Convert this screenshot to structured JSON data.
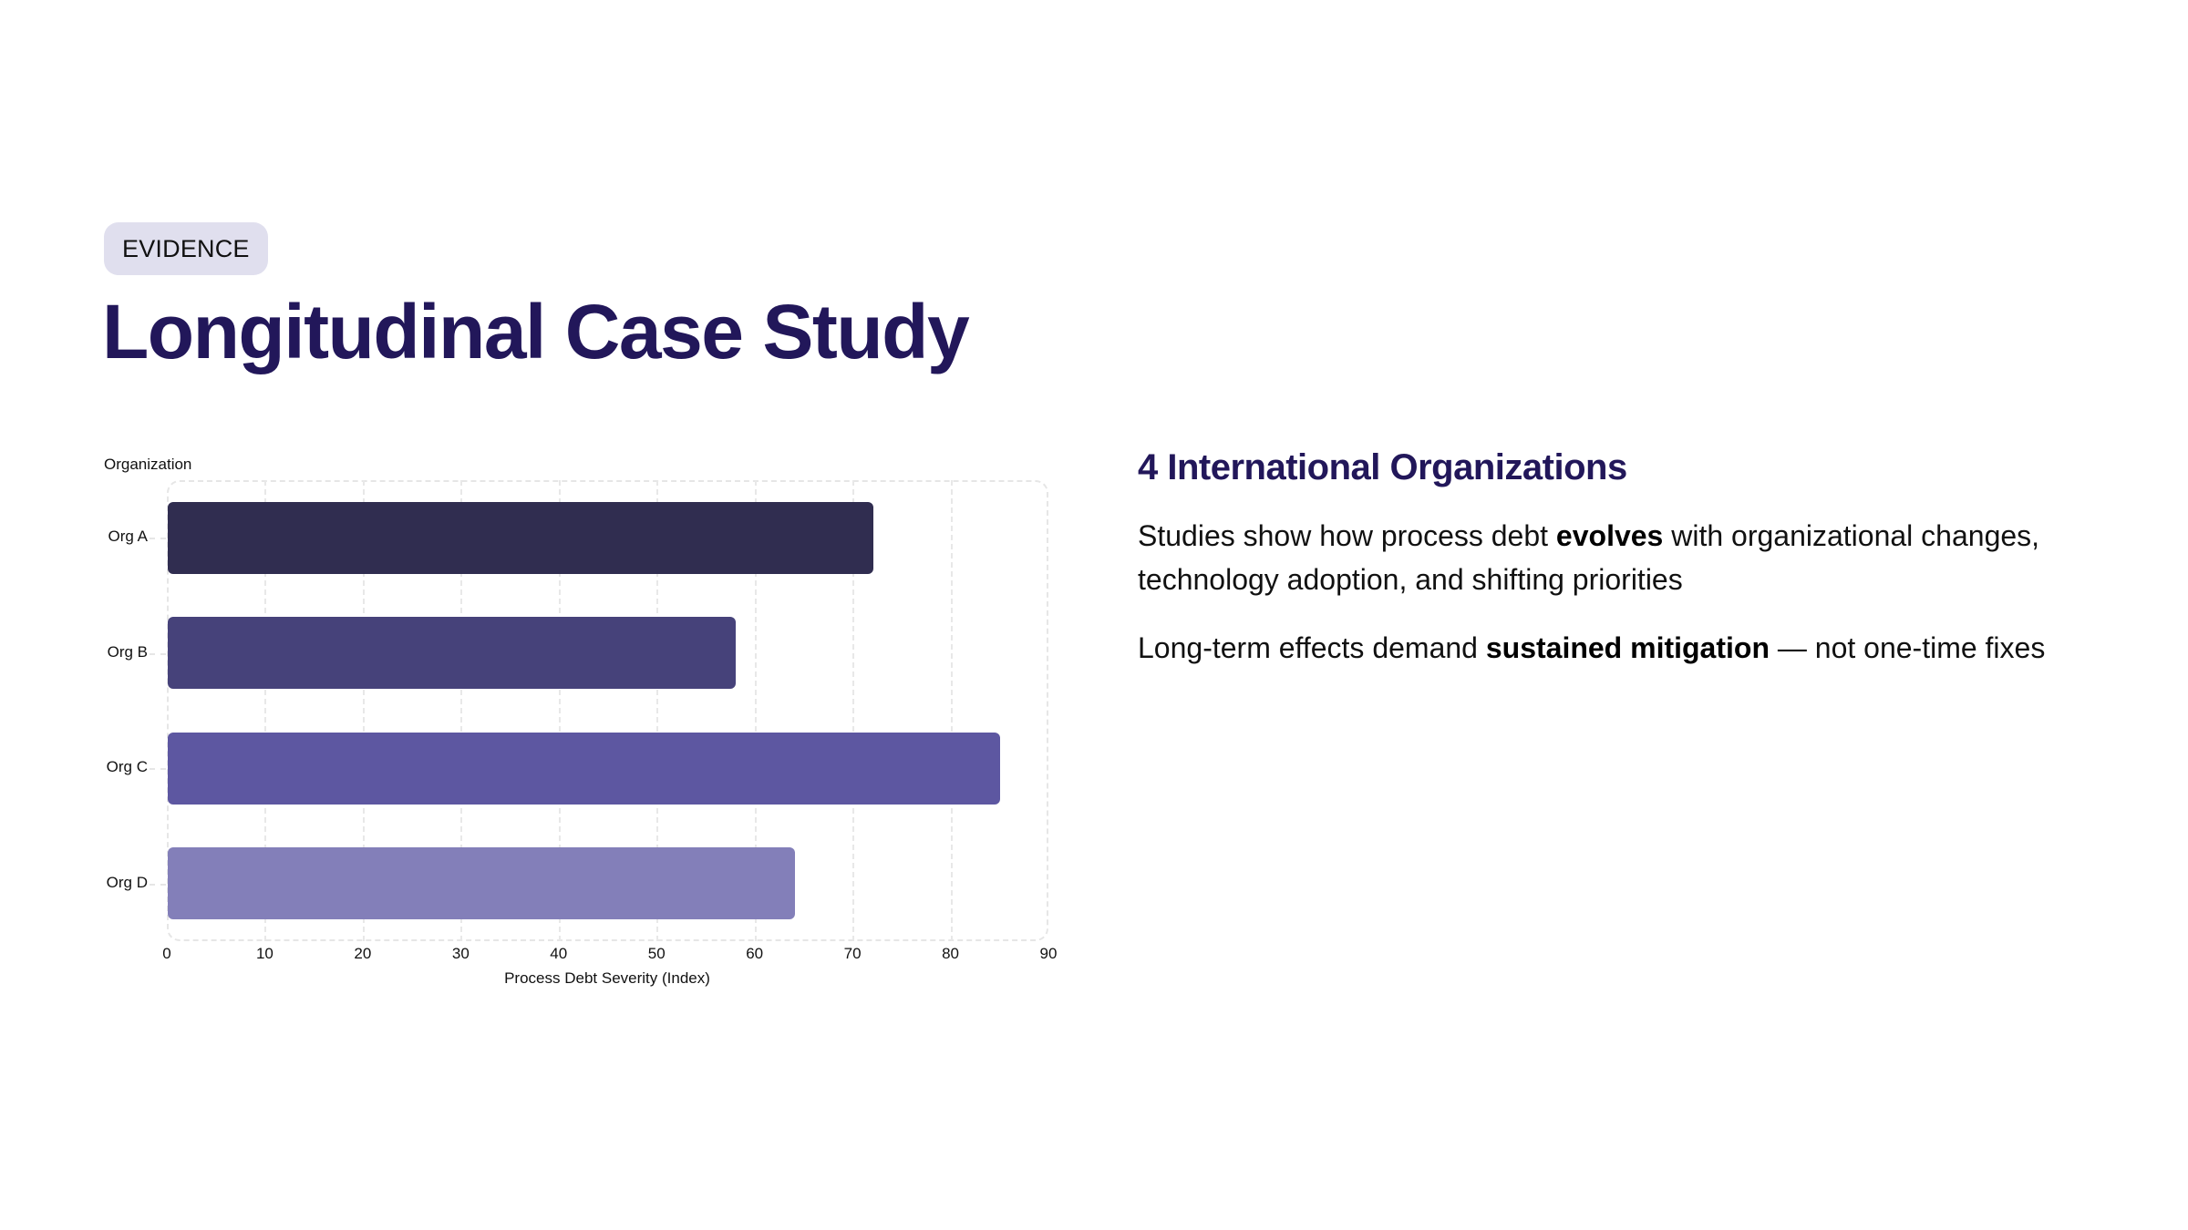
{
  "badge": {
    "label": "EVIDENCE",
    "bg": "#e0dfee"
  },
  "title": "Longitudinal Case Study",
  "chart_data": {
    "type": "bar",
    "orientation": "horizontal",
    "title": "",
    "ylabel": "Organization",
    "xlabel": "Process Debt Severity (Index)",
    "categories": [
      "Org A",
      "Org B",
      "Org C",
      "Org D"
    ],
    "values": [
      72,
      58,
      85,
      64
    ],
    "colors": [
      "#302d50",
      "#46427a",
      "#5d57a1",
      "#837fb9"
    ],
    "xlim": [
      0,
      90
    ],
    "xticks": [
      "0",
      "10",
      "20",
      "30",
      "40",
      "50",
      "60",
      "70",
      "80",
      "90"
    ],
    "grid": true,
    "legend": "none"
  },
  "side": {
    "heading": "4 International Organizations",
    "p1": {
      "pre": "Studies show how process debt ",
      "bold": "evolves",
      "post": " with organizational changes, technology adoption, and shifting priorities"
    },
    "p2": {
      "pre": "Long-term effects demand ",
      "bold": "sustained mitigation",
      "post": " — not one-time fixes"
    }
  }
}
